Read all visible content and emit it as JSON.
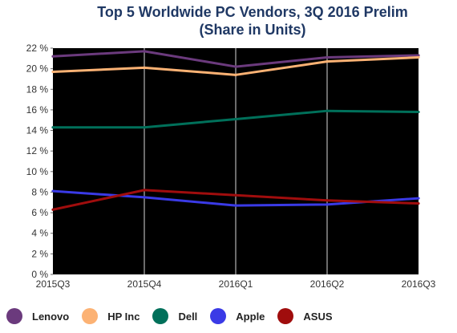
{
  "chart_data": {
    "type": "line",
    "title": "Top 5 Worldwide PC Vendors, 3Q 2016 Prelim",
    "subtitle": "(Share in Units)",
    "categories": [
      "2015Q3",
      "2015Q4",
      "2016Q1",
      "2016Q2",
      "2016Q3"
    ],
    "ylim": [
      0,
      22
    ],
    "yticks": [
      0,
      2,
      4,
      6,
      8,
      10,
      12,
      14,
      16,
      18,
      20,
      22
    ],
    "ytick_labels": [
      "0 %",
      "2 %",
      "4 %",
      "6 %",
      "8 %",
      "10 %",
      "12 %",
      "14 %",
      "16 %",
      "18 %",
      "20 %",
      "22 %"
    ],
    "grid": "vertical",
    "legend_position": "bottom",
    "plot_background": "#000000",
    "series": [
      {
        "name": "Lenovo",
        "color": "#6b3a7d",
        "values": [
          21.2,
          21.7,
          20.2,
          21.1,
          21.3
        ]
      },
      {
        "name": "HP Inc",
        "color": "#fcb274",
        "values": [
          19.7,
          20.1,
          19.4,
          20.7,
          21.1
        ]
      },
      {
        "name": "Dell",
        "color": "#00705a",
        "values": [
          14.3,
          14.3,
          15.1,
          15.9,
          15.8
        ]
      },
      {
        "name": "Apple",
        "color": "#3a3ae6",
        "values": [
          8.1,
          7.5,
          6.7,
          6.8,
          7.4
        ]
      },
      {
        "name": "ASUS",
        "color": "#a00d0d",
        "values": [
          6.3,
          8.2,
          7.7,
          7.2,
          6.9
        ]
      }
    ]
  }
}
